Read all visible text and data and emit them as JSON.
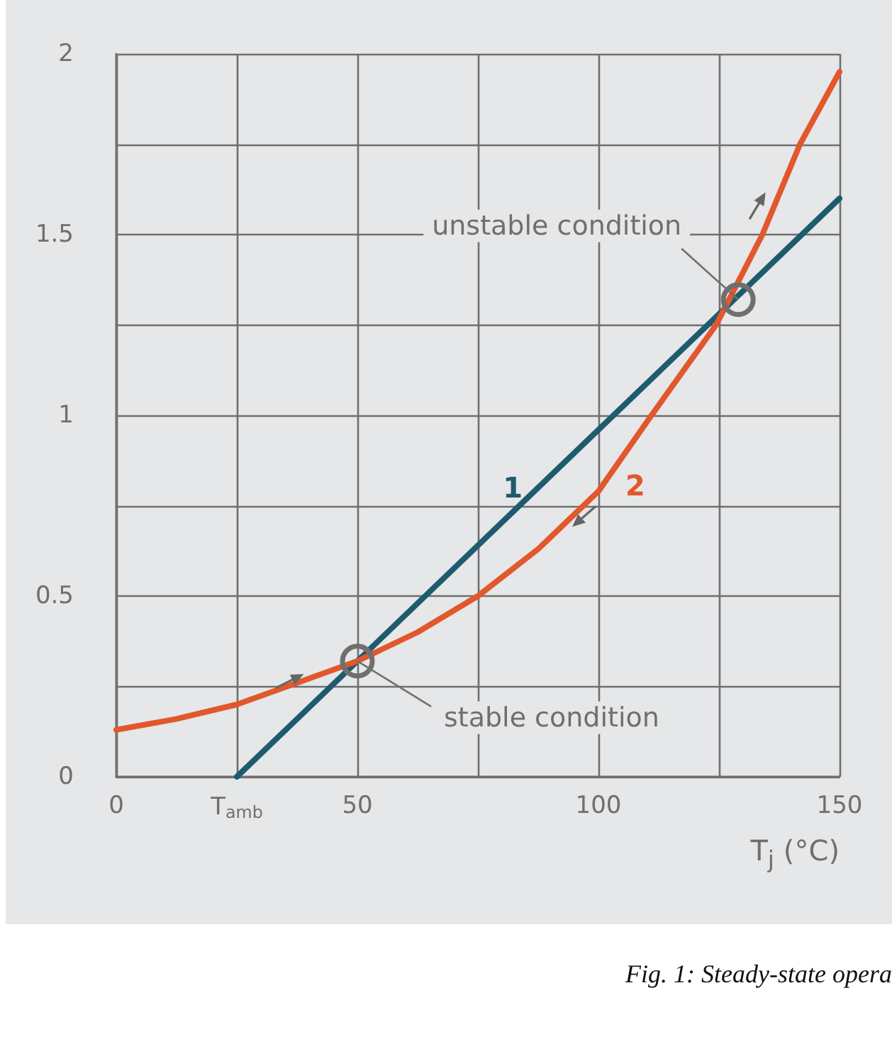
{
  "chart_data": {
    "type": "line",
    "xlabel": "T$_{j}$ (°C)",
    "x": [
      25,
      87.5,
      150
    ],
    "series": [
      {
        "name": "1",
        "color": "#1f5b6e",
        "values": [
          0,
          0.8,
          1.6
        ]
      },
      {
        "name": "2",
        "color": "#e2572c",
        "x": [
          0,
          12.5,
          25,
          37.5,
          50,
          62.5,
          75,
          87.5,
          100,
          111,
          124.4,
          134,
          141.8,
          150
        ],
        "values": [
          0.13,
          0.16,
          0.2,
          0.26,
          0.32,
          0.4,
          0.5,
          0.63,
          0.79,
          1.0,
          1.25,
          1.5,
          1.75,
          1.95
        ]
      }
    ],
    "xlim": [
      0,
      150
    ],
    "xticks": [
      0,
      {
        "value": 25,
        "label": "T$_{amb}$"
      },
      50,
      {
        "value": 75,
        "label": null
      },
      100,
      {
        "value": 125,
        "label": null
      },
      150
    ],
    "ylim": [
      0,
      2
    ],
    "yticks": [
      0,
      {
        "value": 0.25,
        "label": null
      },
      0.5,
      {
        "value": 0.75,
        "label": null
      },
      1,
      {
        "value": 1.25,
        "label": null
      },
      1.5,
      {
        "value": 1.75,
        "label": null
      },
      2
    ],
    "grid": true,
    "legend": false,
    "marker": "none",
    "line_style": "solid",
    "annotations": [
      {
        "text": "unstable condition",
        "x": 129,
        "y": 1.32
      },
      {
        "text": "stable condition",
        "x": 50,
        "y": 0.32
      },
      "Fig. 1: Steady-state opera"
    ]
  }
}
